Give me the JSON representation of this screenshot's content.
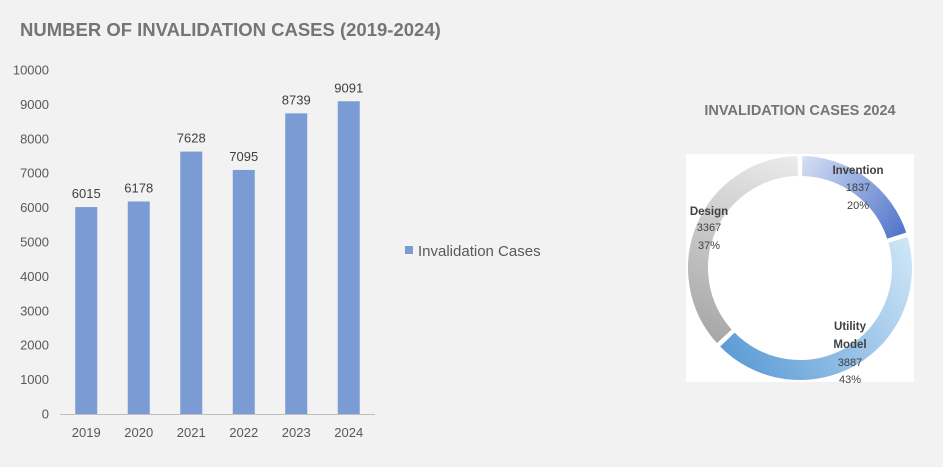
{
  "chart_data": [
    {
      "type": "bar",
      "title": "NUMBER OF INVALIDATION CASES (2019-2024)",
      "categories": [
        "2019",
        "2020",
        "2021",
        "2022",
        "2023",
        "2024"
      ],
      "series": [
        {
          "name": "Invalidation Cases",
          "values": [
            6015,
            6178,
            7628,
            7095,
            8739,
            9091
          ]
        }
      ],
      "ylim": [
        0,
        10000
      ],
      "yticks": [
        "0",
        "1000",
        "2000",
        "3000",
        "4000",
        "5000",
        "6000",
        "7000",
        "8000",
        "9000",
        "10000"
      ],
      "legend_position": "right",
      "grid": false,
      "colors": {
        "bar": "#7b9bd4",
        "axis": "#bfbfbf"
      }
    },
    {
      "type": "pie",
      "variant": "donut",
      "title": "INVALIDATION CASES 2024",
      "slices": [
        {
          "label": "Invention",
          "value": 1837,
          "percent": "20%",
          "display_value": "1837",
          "colors": [
            "#d8e0f5",
            "#4c72c9"
          ]
        },
        {
          "label": "Utility Model",
          "label_lines": [
            "Utility",
            "Model"
          ],
          "value": 3887,
          "percent": "43%",
          "display_value": "3887",
          "colors": [
            "#cfe6f7",
            "#5b9bd5"
          ]
        },
        {
          "label": "Design",
          "value": 3367,
          "percent": "37%",
          "display_value": "3367",
          "colors": [
            "#a6a6a6",
            "#ececec"
          ]
        }
      ]
    }
  ]
}
